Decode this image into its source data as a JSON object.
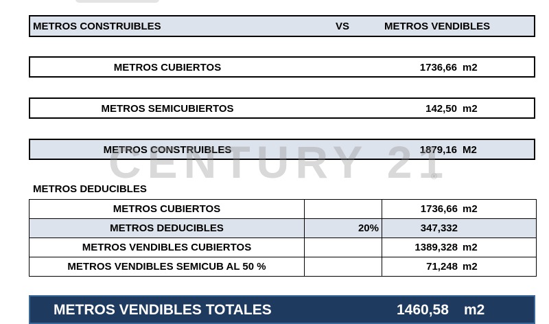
{
  "header": {
    "left": "METROS CONSTRUIBLES",
    "middle": "VS",
    "right": "METROS VENDIBLES"
  },
  "summary": [
    {
      "label": "METROS CUBIERTOS",
      "number": "1736,66",
      "unit": "m2"
    },
    {
      "label": "METROS SEMICUBIERTOS",
      "number": "142,50",
      "unit": "m2"
    },
    {
      "label": "METROS CONSTRUIBLES",
      "number": "1879,16",
      "unit": "M2"
    }
  ],
  "deductions": {
    "title": "METROS DEDUCIBLES",
    "rows": [
      {
        "label": "METROS CUBIERTOS",
        "number": "1736,66",
        "unit": "m2"
      },
      {
        "label": "METROS DEDUCIBLES",
        "percent": "20%",
        "number": "347,332"
      },
      {
        "label": "METROS VENDIBLES CUBIERTOS",
        "number": "1389,328",
        "unit": "m2"
      },
      {
        "label": "METROS VENDIBLES SEMICUB AL 50 %",
        "number": "71,248",
        "unit": "m2"
      }
    ]
  },
  "total": {
    "label": "METROS VENDIBLES TOTALES",
    "number": "1460,58",
    "unit": "m2"
  },
  "watermark": {
    "text": "CENTURY 21",
    "mark": "®"
  }
}
